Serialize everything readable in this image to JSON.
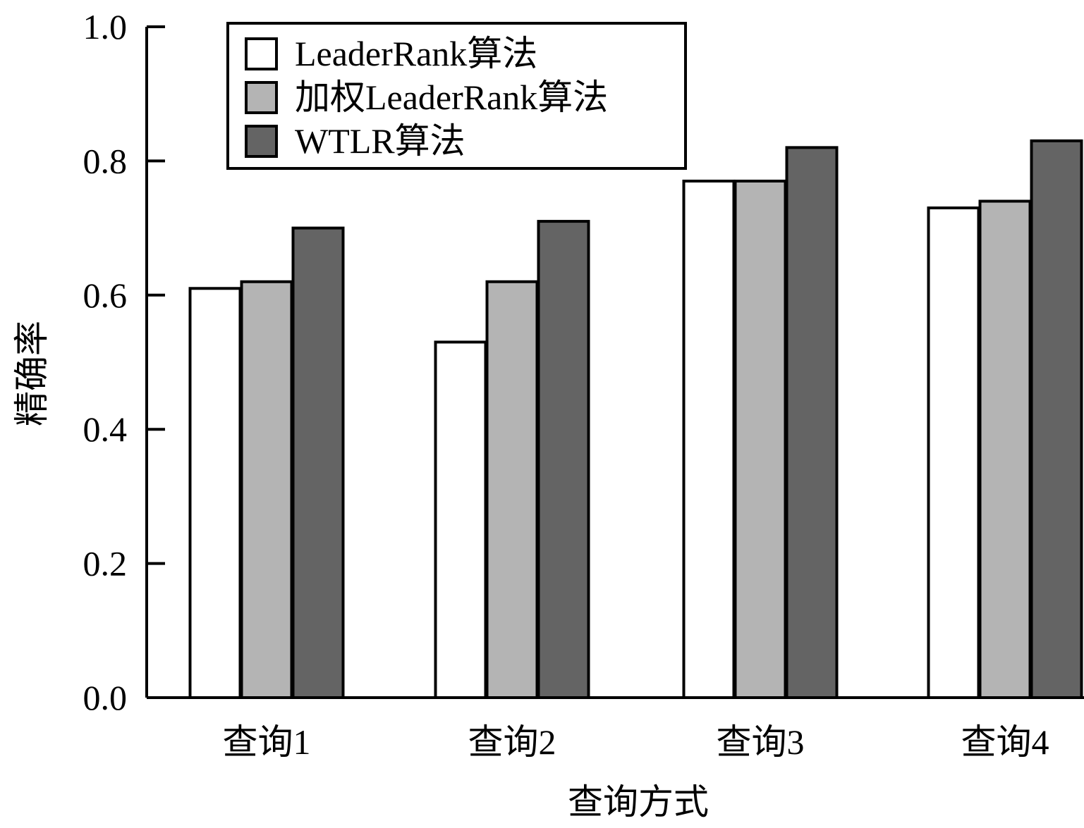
{
  "chart_data": {
    "type": "bar",
    "title": "",
    "xlabel": "查询方式",
    "ylabel": "精确率",
    "categories": [
      "查询1",
      "查询2",
      "查询3",
      "查询4"
    ],
    "ylim": [
      0,
      1.0
    ],
    "yticks": [
      "0.0",
      "0.2",
      "0.4",
      "0.6",
      "0.8",
      "1.0"
    ],
    "grid": false,
    "legend_position": "top-left",
    "series": [
      {
        "name": "LeaderRank算法",
        "color": "#ffffff",
        "values": [
          0.61,
          0.53,
          0.77,
          0.73
        ]
      },
      {
        "name": "加权LeaderRank算法",
        "color": "#b4b4b4",
        "values": [
          0.62,
          0.62,
          0.77,
          0.74
        ]
      },
      {
        "name": "WTLR算法",
        "color": "#646464",
        "values": [
          0.7,
          0.71,
          0.82,
          0.83
        ]
      }
    ]
  }
}
